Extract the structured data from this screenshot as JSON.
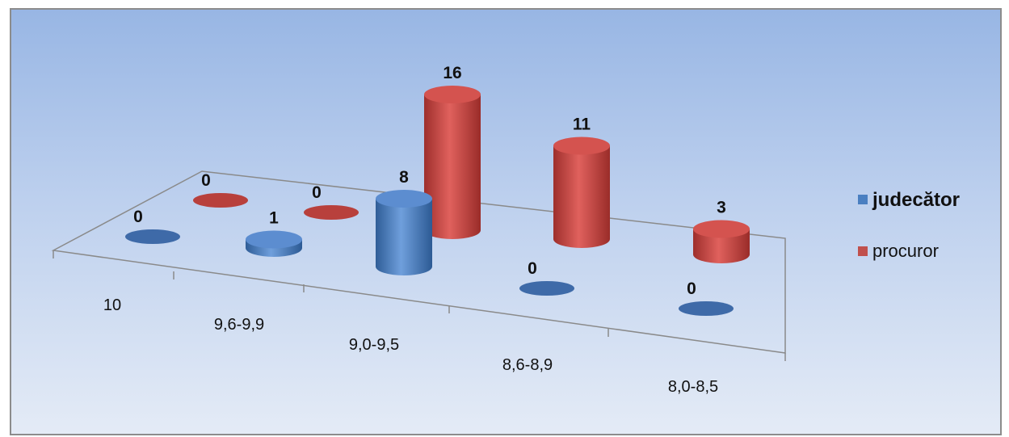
{
  "chart_data": {
    "type": "bar",
    "title": "",
    "xlabel": "",
    "ylabel": "",
    "categories": [
      "10",
      "9,6-9,9",
      "9,0-9,5",
      "8,6-8,9",
      "8,0-8,5"
    ],
    "series": [
      {
        "name": "judecător",
        "values": [
          0,
          1,
          8,
          0,
          0
        ],
        "color": "#4a7fc1"
      },
      {
        "name": "procuror",
        "values": [
          0,
          0,
          16,
          11,
          3
        ],
        "color": "#c0504d"
      }
    ],
    "style": "3d-cylinder",
    "legend_placement": "right",
    "data_labels": true,
    "grid": false
  }
}
